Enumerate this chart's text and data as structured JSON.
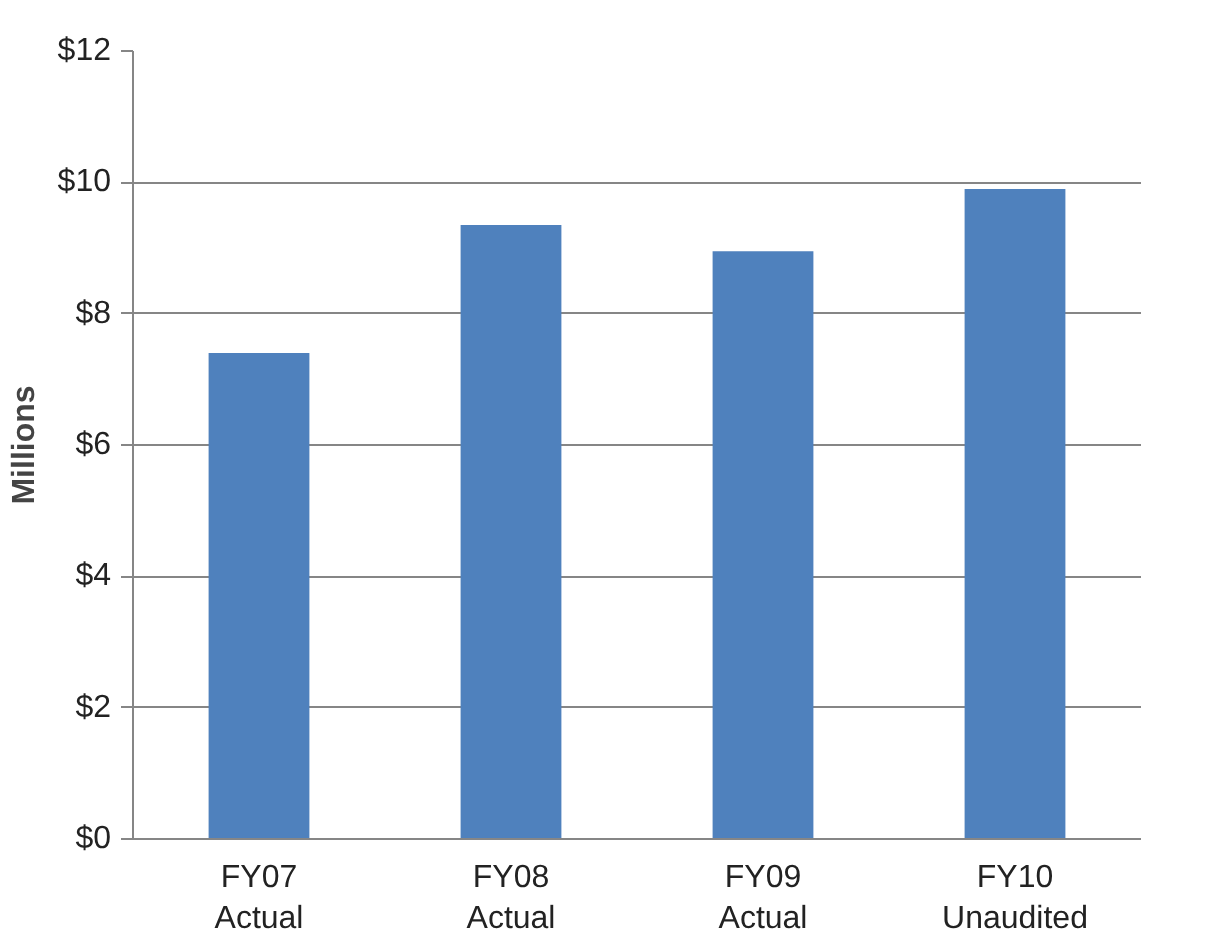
{
  "chart_data": {
    "type": "bar",
    "ylabel": "Millions",
    "categories": [
      "FY07\nActual",
      "FY08\nActual",
      "FY09\nActual",
      "FY10\nUnaudited"
    ],
    "values": [
      7.4,
      9.35,
      8.95,
      9.9
    ],
    "color": "#4f81bd",
    "ylim": [
      0,
      12
    ],
    "yticks": [
      {
        "value": 0,
        "label": "$0"
      },
      {
        "value": 2,
        "label": "$2"
      },
      {
        "value": 4,
        "label": "$4"
      },
      {
        "value": 6,
        "label": "$6"
      },
      {
        "value": 8,
        "label": "$8"
      },
      {
        "value": 10,
        "label": "$10"
      },
      {
        "value": 12,
        "label": "$12"
      }
    ],
    "grid": "y"
  }
}
